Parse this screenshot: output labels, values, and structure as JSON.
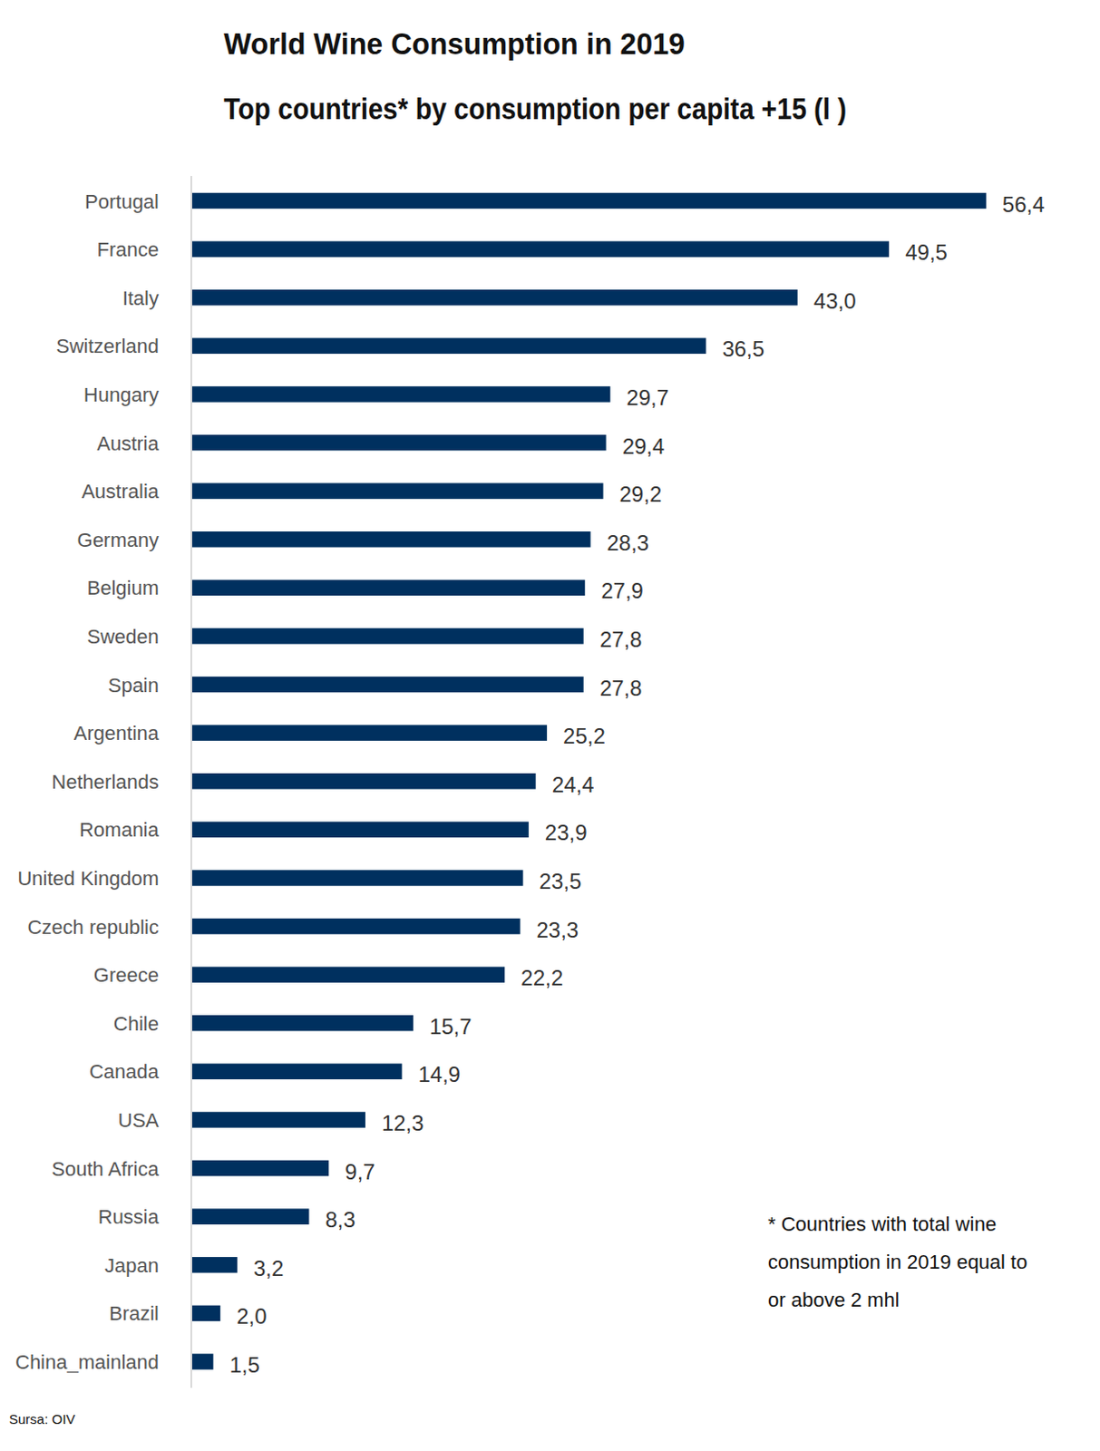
{
  "chart_data": {
    "type": "bar",
    "orientation": "horizontal",
    "title": "World Wine Consumption in 2019",
    "subtitle": "Top countries* by consumption per capita +15 (l )",
    "categories": [
      "Portugal",
      "France",
      "Italy",
      "Switzerland",
      "Hungary",
      "Austria",
      "Australia",
      "Germany",
      "Belgium",
      "Sweden",
      "Spain",
      "Argentina",
      "Netherlands",
      "Romania",
      "United Kingdom",
      "Czech republic",
      "Greece",
      "Chile",
      "Canada",
      "USA",
      "South Africa",
      "Russia",
      "Japan",
      "Brazil",
      "China_mainland"
    ],
    "values": [
      56.4,
      49.5,
      43.0,
      36.5,
      29.7,
      29.4,
      29.2,
      28.3,
      27.9,
      27.8,
      27.8,
      25.2,
      24.4,
      23.9,
      23.5,
      23.3,
      22.2,
      15.7,
      14.9,
      12.3,
      9.7,
      8.3,
      3.2,
      2.0,
      1.5
    ],
    "value_labels": [
      "56,4",
      "49,5",
      "43,0",
      "36,5",
      "29,7",
      "29,4",
      "29,2",
      "28,3",
      "27,9",
      "27,8",
      "27,8",
      "25,2",
      "24,4",
      "23,9",
      "23,5",
      "23,3",
      "22,2",
      "15,7",
      "14,9",
      "12,3",
      "9,7",
      "8,3",
      "3,2",
      "2,0",
      "1,5"
    ],
    "color": "#00305f",
    "xlim": [
      0,
      60
    ],
    "data_labels": true,
    "tick_labels": "y",
    "grid": false,
    "annotations": [
      "* Countries with total wine",
      "consumption in 2019 equal to",
      "or above 2 mhl"
    ],
    "source": "Sursa: OIV"
  }
}
